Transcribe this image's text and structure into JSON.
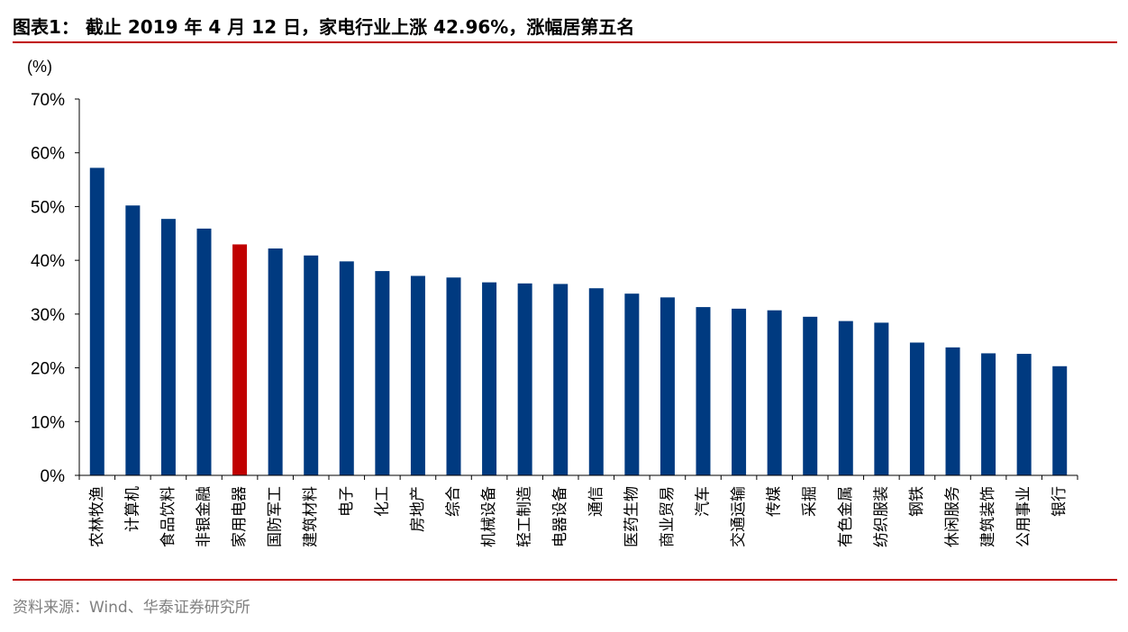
{
  "title": "图表1：  截止 2019 年 4 月 12 日，家电行业上涨 42.96%，涨幅居第五名",
  "source": "资料来源：Wind、华泰证券研究所",
  "colors": {
    "bar": "#003a80",
    "highlight": "#c00000",
    "rule": "#c00000"
  },
  "chart_data": {
    "type": "bar",
    "ylabel": "(%)",
    "ylim": [
      0,
      70
    ],
    "ytick_labels": [
      "0%",
      "10%",
      "20%",
      "30%",
      "40%",
      "50%",
      "60%",
      "70%"
    ],
    "highlight_category": "家用电器",
    "categories": [
      "农林牧渔",
      "计算机",
      "食品饮料",
      "非银金融",
      "家用电器",
      "国防军工",
      "建筑材料",
      "电子",
      "化工",
      "房地产",
      "综合",
      "机械设备",
      "轻工制造",
      "电器设备",
      "通信",
      "医药生物",
      "商业贸易",
      "汽车",
      "交通运输",
      "传媒",
      "采掘",
      "有色金属",
      "纺织服装",
      "钢铁",
      "休闲服务",
      "建筑装饰",
      "公用事业",
      "银行"
    ],
    "values": [
      57.2,
      50.2,
      47.7,
      45.9,
      42.96,
      42.2,
      40.9,
      39.8,
      38.0,
      37.1,
      36.8,
      35.9,
      35.7,
      35.6,
      34.8,
      33.8,
      33.1,
      31.3,
      31.0,
      30.7,
      29.5,
      28.7,
      28.4,
      24.7,
      23.8,
      22.7,
      22.6,
      20.3
    ]
  }
}
